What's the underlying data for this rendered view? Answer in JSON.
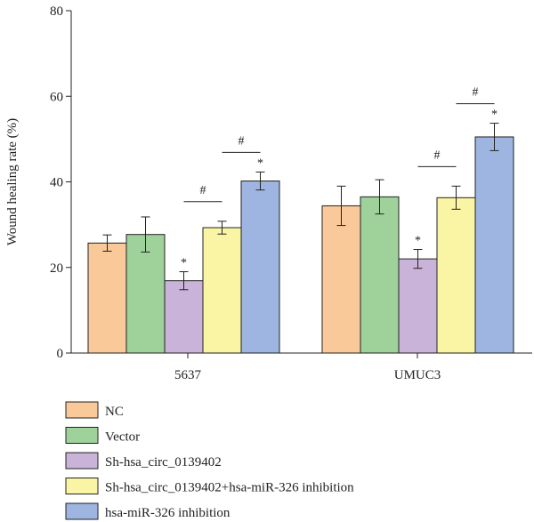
{
  "chart_data": {
    "type": "bar",
    "title": "",
    "xlabel": "",
    "ylabel": "Wound healing rate (%)",
    "ylim": [
      0,
      80
    ],
    "yticks": [
      0,
      20,
      40,
      60,
      80
    ],
    "grid": false,
    "legend_position": "bottom",
    "categories": [
      "5637",
      "UMUC3"
    ],
    "series": [
      {
        "name": "NC",
        "color": "#F9C99A",
        "values": [
          25.7,
          34.4
        ],
        "errors": [
          1.9,
          4.6
        ],
        "star": [
          false,
          false
        ]
      },
      {
        "name": "Vector",
        "color": "#9FD19B",
        "values": [
          27.7,
          36.5
        ],
        "errors": [
          4.1,
          4.0
        ],
        "star": [
          false,
          false
        ]
      },
      {
        "name": "Sh-hsa_circ_0139402",
        "color": "#C9B3D8",
        "values": [
          16.9,
          22.0
        ],
        "errors": [
          2.1,
          2.2
        ],
        "star": [
          true,
          true
        ]
      },
      {
        "name": "Sh-hsa_circ_0139402+hsa-miR-326 inhibition",
        "color": "#FAF5A4",
        "values": [
          29.3,
          36.3
        ],
        "errors": [
          1.5,
          2.7
        ],
        "star": [
          false,
          false
        ]
      },
      {
        "name": "hsa-miR-326 inhibition",
        "color": "#9DB5E0",
        "values": [
          40.2,
          50.5
        ],
        "errors": [
          2.1,
          3.2
        ],
        "star": [
          true,
          true
        ]
      }
    ],
    "annotations": {
      "star_symbol": "*",
      "hash_symbol": "#",
      "hash_brackets": [
        {
          "category": "5637",
          "between_series": [
            "Sh-hsa_circ_0139402",
            "Sh-hsa_circ_0139402+hsa-miR-326 inhibition"
          ]
        },
        {
          "category": "5637",
          "between_series": [
            "Sh-hsa_circ_0139402+hsa-miR-326 inhibition",
            "hsa-miR-326 inhibition"
          ]
        },
        {
          "category": "UMUC3",
          "between_series": [
            "Sh-hsa_circ_0139402",
            "Sh-hsa_circ_0139402+hsa-miR-326 inhibition"
          ]
        },
        {
          "category": "UMUC3",
          "between_series": [
            "Sh-hsa_circ_0139402+hsa-miR-326 inhibition",
            "hsa-miR-326 inhibition"
          ]
        }
      ]
    }
  }
}
